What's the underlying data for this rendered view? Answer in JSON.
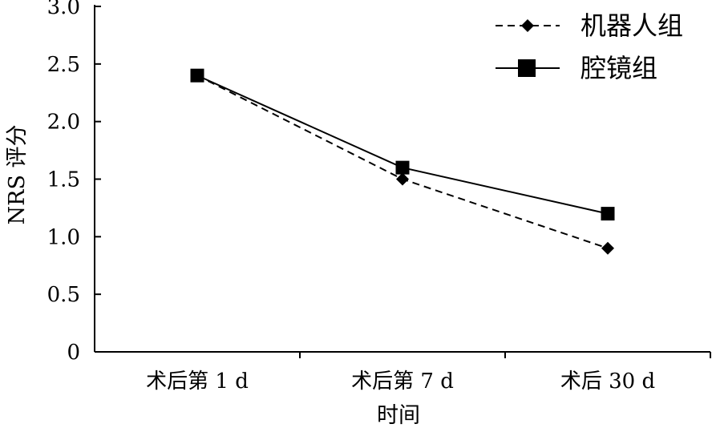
{
  "chart_data": {
    "type": "line",
    "title": "",
    "xlabel": "时间",
    "ylabel": "NRS 评分",
    "categories": [
      "术后第 1 d",
      "术后第 7 d",
      "术后 30 d"
    ],
    "ylim": [
      0,
      3.0
    ],
    "yticks": [
      "0",
      "0.5",
      "1.0",
      "1.5",
      "2.0",
      "2.5",
      "3.0"
    ],
    "ytick_values": [
      0,
      0.5,
      1.0,
      1.5,
      2.0,
      2.5,
      3.0
    ],
    "grid": false,
    "legend_position": "top-right",
    "series": [
      {
        "name": "机器人组",
        "values": [
          2.4,
          1.5,
          0.9
        ],
        "line": "dashed",
        "marker": "diamond",
        "color": "#000000"
      },
      {
        "name": "腔镜组",
        "values": [
          2.4,
          1.6,
          1.2
        ],
        "line": "solid",
        "marker": "square",
        "color": "#000000"
      }
    ]
  }
}
